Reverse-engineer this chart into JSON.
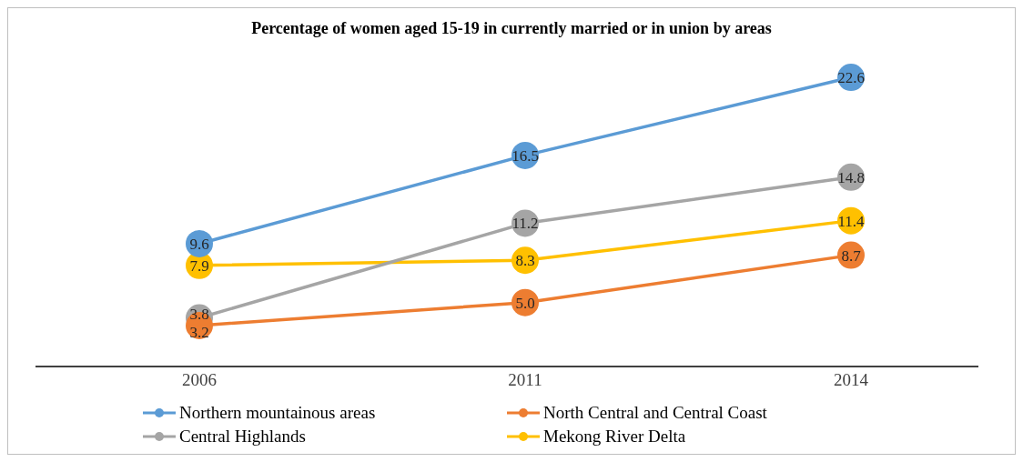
{
  "chart_data": {
    "type": "line",
    "title": "Percentage of women aged 15-19 in currently married or in union by areas",
    "categories": [
      "2006",
      "2011",
      "2014"
    ],
    "series": [
      {
        "name": "Northern mountainous areas",
        "color": "#5b9bd5",
        "values": [
          9.6,
          16.5,
          22.6
        ],
        "value_labels": [
          "9.6",
          "16.5",
          "22.6"
        ]
      },
      {
        "name": "North Central and Central Coast",
        "color": "#ed7d31",
        "values": [
          3.2,
          5.0,
          8.7
        ],
        "value_labels": [
          "3.2",
          "5.0",
          "8.7"
        ]
      },
      {
        "name": "Central Highlands",
        "color": "#a5a5a5",
        "values": [
          3.8,
          11.2,
          14.8
        ],
        "value_labels": [
          "3.8",
          "11.2",
          "14.8"
        ]
      },
      {
        "name": "Mekong River Delta",
        "color": "#ffc000",
        "values": [
          7.9,
          8.3,
          11.4
        ],
        "value_labels": [
          "7.9",
          "8.3",
          "11.4"
        ]
      }
    ],
    "tick_labels": "x",
    "legend": "bottom",
    "marker": "circle",
    "line_style": "solid"
  }
}
